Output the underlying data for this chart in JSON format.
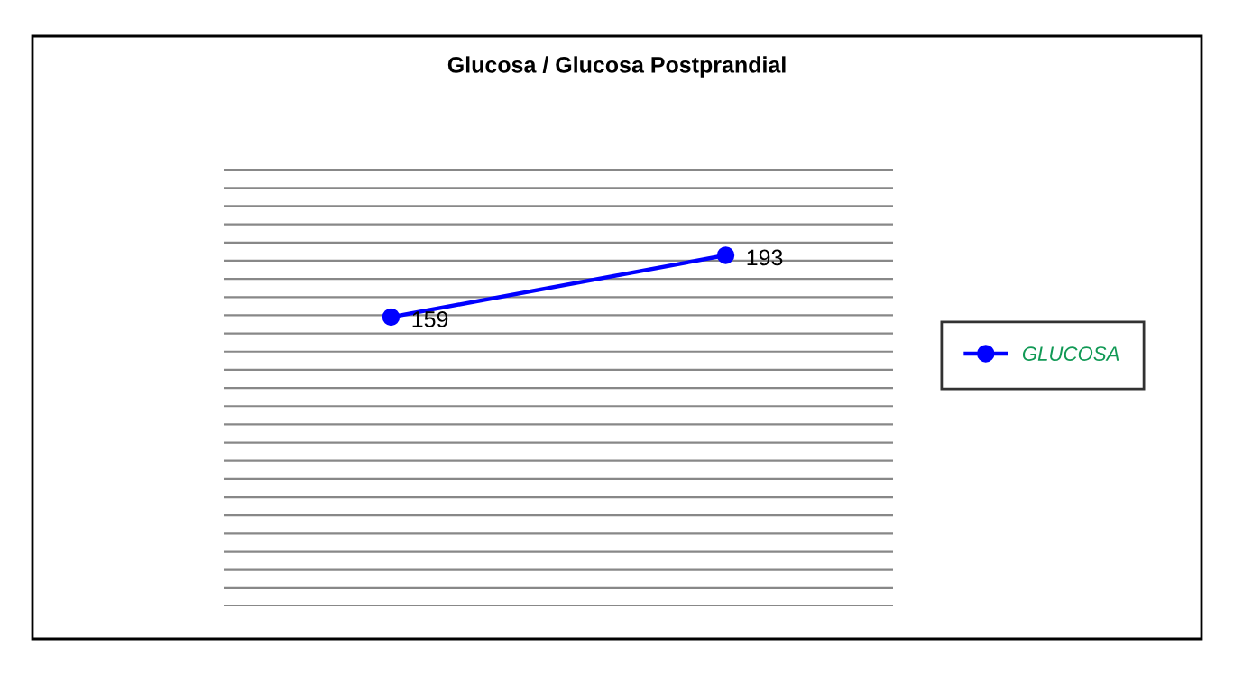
{
  "chart_data": {
    "type": "line",
    "title": "Glucosa / Glucosa Postprandial",
    "categories": [
      null,
      null
    ],
    "series": [
      {
        "name": "GLUCOSA",
        "color": "#0000ff",
        "values": [
          159,
          193
        ]
      }
    ],
    "ylim": [
      0,
      250
    ],
    "yticks": [
      {
        "value": 0,
        "label": null
      },
      {
        "value": 10,
        "label": null
      },
      {
        "value": 20,
        "label": null
      },
      {
        "value": 30,
        "label": null
      },
      {
        "value": 40,
        "label": null
      },
      {
        "value": 50,
        "label": null
      },
      {
        "value": 60,
        "label": null
      },
      {
        "value": 70,
        "label": null
      },
      {
        "value": 80,
        "label": null
      },
      {
        "value": 90,
        "label": null
      },
      {
        "value": 100,
        "label": null
      },
      {
        "value": 110,
        "label": null
      },
      {
        "value": 120,
        "label": null
      },
      {
        "value": 130,
        "label": null
      },
      {
        "value": 140,
        "label": null
      },
      {
        "value": 150,
        "label": null
      },
      {
        "value": 160,
        "label": null
      },
      {
        "value": 170,
        "label": null
      },
      {
        "value": 180,
        "label": null
      },
      {
        "value": 190,
        "label": null
      },
      {
        "value": 200,
        "label": null
      },
      {
        "value": 210,
        "label": null
      },
      {
        "value": 220,
        "label": null
      },
      {
        "value": 230,
        "label": null
      },
      {
        "value": 240,
        "label": null
      },
      {
        "value": 250,
        "label": null
      }
    ],
    "grid": "y",
    "data_labels": true,
    "marker": "circle",
    "line_style": "solid",
    "legend": "right"
  }
}
